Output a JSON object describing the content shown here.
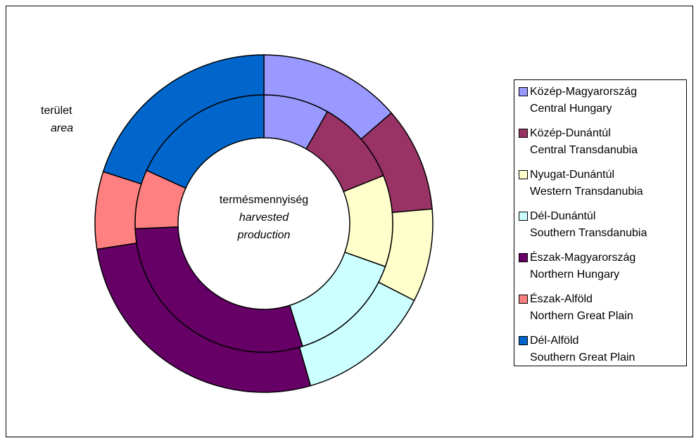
{
  "chart_data": {
    "type": "doughnut",
    "categories": [
      "Közép-Magyarország",
      "Közép-Dunántúl",
      "Nyugat-Dunántúl",
      "Dél-Dunántúl",
      "Észak-Magyarország",
      "Észak-Alföld",
      "Dél-Alföld"
    ],
    "categories_en": [
      "Central Hungary",
      "Central Transdanubia",
      "Western Transdanubia",
      "Southern Transdanubia",
      "Northern Hungary",
      "Northern Great Plain",
      "Southern Great Plain"
    ],
    "colors": [
      "#9999ff",
      "#993366",
      "#ffffcc",
      "#ccffff",
      "#660066",
      "#ff8080",
      "#0066cc"
    ],
    "series": [
      {
        "name": "terület",
        "name_en": [
          "area"
        ],
        "values": [
          13.6,
          10.0,
          8.9,
          13.0,
          27.0,
          7.4,
          20.0
        ]
      },
      {
        "name": "termésmennyiség",
        "name_en": [
          "harvested",
          "production"
        ],
        "values": [
          8.2,
          10.7,
          11.5,
          14.7,
          29.2,
          7.4,
          18.2
        ]
      }
    ]
  }
}
